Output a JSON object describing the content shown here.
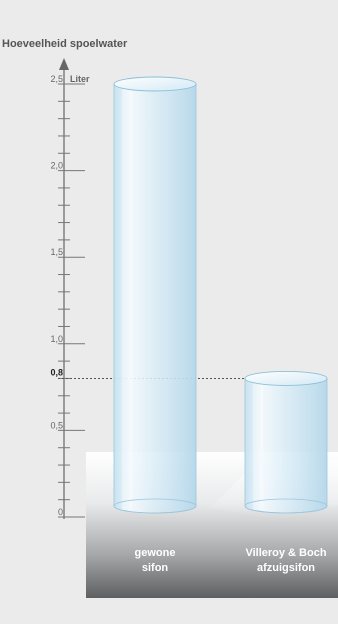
{
  "chart_data": {
    "type": "bar",
    "title": "Hoeveelheid spoelwater",
    "ylabel": "Liter",
    "ylim": [
      0,
      2.5
    ],
    "y_ticks": [
      "0",
      "0,5",
      "1,0",
      "1,5",
      "2,0",
      "2,5"
    ],
    "y_tick_values": [
      0,
      0.5,
      1.0,
      1.5,
      2.0,
      2.5
    ],
    "highlight": {
      "label": "0,8",
      "value": 0.8
    },
    "categories": [
      {
        "line1": "gewone",
        "line2": "sifon"
      },
      {
        "line1": "Villeroy & Boch",
        "line2": "afzuigsifon"
      }
    ],
    "values": [
      2.5,
      0.8
    ],
    "colors": {
      "background": "#ebebeb",
      "axis": "#666666",
      "platform_top": "#ffffff",
      "platform_bottom": "#5e5e5e",
      "cylinder": "#bfdff0",
      "label": "#ffffff"
    }
  }
}
